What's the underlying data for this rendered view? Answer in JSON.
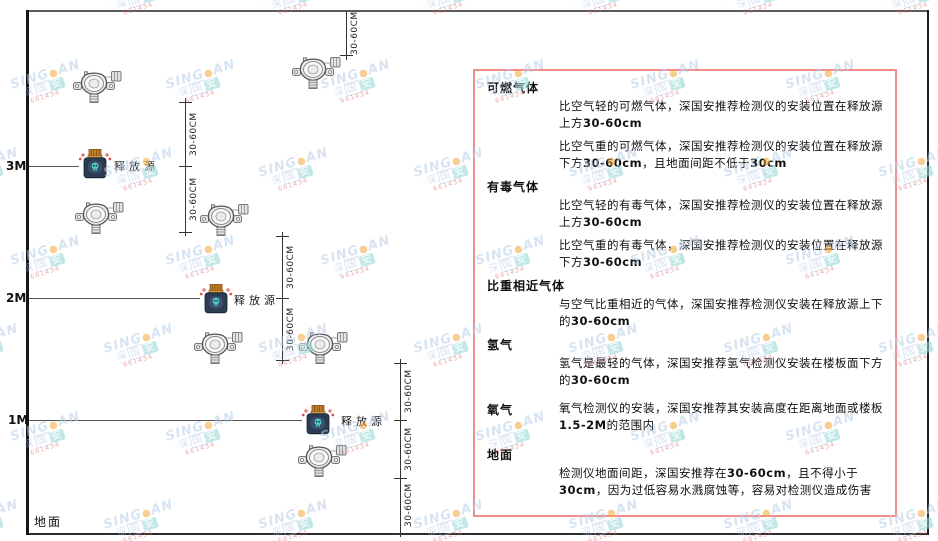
{
  "diagram": {
    "heights": [
      "3M",
      "2M",
      "1M"
    ],
    "ground_label": "地面",
    "source_label": "释放源",
    "dim_label": "30-60CM"
  },
  "panel": {
    "sections": [
      {
        "heading": "可燃气体",
        "paragraphs": [
          "比空气轻的可燃气体，深国安推荐检测仪的安装位置在释放源上方30-60cm",
          "比空气重的可燃气体，深国安推荐检测仪的安装位置在释放源下方30-60cm，且地面间距不低于30cm"
        ]
      },
      {
        "heading": "有毒气体",
        "paragraphs": [
          "比空气轻的有毒气体，深国安推荐检测仪的安装位置在释放源上方30-60cm",
          "比空气重的有毒气体，深国安推荐检测仪的安装位置在释放源下方30-60cm"
        ]
      },
      {
        "heading": "比重相近气体",
        "paragraphs": [
          "与空气比重相近的气体，深国安推荐检测仪安装在释放源上下的30-60cm"
        ]
      },
      {
        "heading": "氢气",
        "paragraphs": [
          "氢气是最轻的气体，深国安推荐氢气检测仪安装在楼板面下方的30-60cm"
        ]
      },
      {
        "heading": "氧气",
        "paragraphs": [
          "氧气检测仪的安装，深国安推荐其安装高度在距离地面或楼板1.5-2M的范围内"
        ]
      },
      {
        "heading": "地面",
        "paragraphs": [
          "检测仪地面间距，深国安推荐在30-60cm，且不得小于30cm，因为过低容易水溅腐蚀等，容易对检测仪造成伤害"
        ]
      }
    ]
  },
  "watermark": {
    "brand_left": "SING",
    "brand_right": "AN",
    "cjk": "深国安",
    "code": "661434"
  },
  "icons": {
    "detector": "gas-detector-icon",
    "source": "release-source-icon"
  },
  "colors": {
    "accent-red": "#f28b8b",
    "src-body": "#2c3b50",
    "src-cap": "#c9822a",
    "src-skull": "#4ecdc9",
    "wm-blue": "#b8cee6",
    "wm-orange": "#f2a93b",
    "wm-teal": "#8fd4d2",
    "wm-red": "#d96b6b"
  }
}
